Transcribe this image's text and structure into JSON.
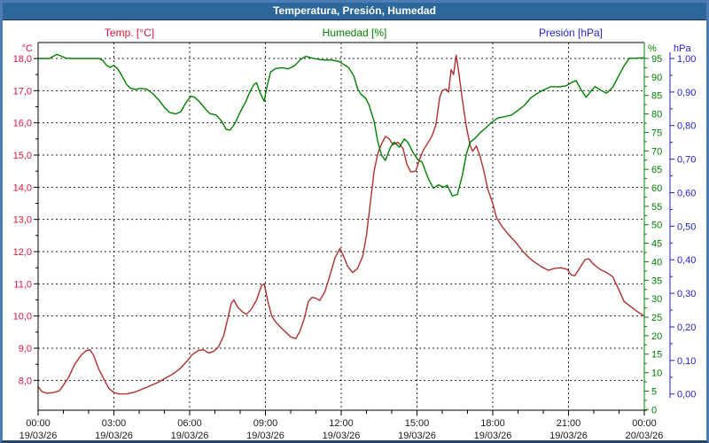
{
  "window": {
    "title": "Temperatura, Presión, Humedad"
  },
  "legend": {
    "temp_label": "Temp. [°C]",
    "humidity_label": "Humedad [%]",
    "pressure_label": "Presión [hPa]"
  },
  "colors": {
    "titlebar_bg": "#2d689c",
    "window_border": "#4e7cb5",
    "temp_curve": "#b22f2f",
    "temp_labels": "#dc143c",
    "humidity": "#008000",
    "pressure": "#1f1fcc",
    "grid": "#222222",
    "x_labels": "#1b1b1b"
  },
  "chart_data": {
    "type": "line",
    "title": "Temperatura, Presión, Humedad",
    "grid": "dashed-black",
    "x_axis": {
      "unit_hours": true,
      "range": [
        0,
        24
      ],
      "major_ticks": [
        {
          "t": 0,
          "time": "00:00",
          "date": "19/03/26"
        },
        {
          "t": 3,
          "time": "03:00",
          "date": "19/03/26"
        },
        {
          "t": 6,
          "time": "06:00",
          "date": "19/03/26"
        },
        {
          "t": 9,
          "time": "09:00",
          "date": "19/03/26"
        },
        {
          "t": 12,
          "time": "12:00",
          "date": "19/03/26"
        },
        {
          "t": 15,
          "time": "15:00",
          "date": "19/03/26"
        },
        {
          "t": 18,
          "time": "18:00",
          "date": "19/03/26"
        },
        {
          "t": 21,
          "time": "21:00",
          "date": "19/03/26"
        },
        {
          "t": 24,
          "time": "00:00",
          "date": "20/03/26"
        }
      ],
      "minor_tick_every_hours": 1
    },
    "temp_axis": {
      "unit": "°C",
      "side": "left",
      "tick_values": [
        18,
        17,
        16,
        15,
        14,
        13,
        12,
        11,
        10,
        9,
        8
      ],
      "tick_labels": [
        "18,0",
        "17,0",
        "16,0",
        "15,0",
        "14,0",
        "13,0",
        "12,0",
        "11,0",
        "10,0",
        "9,0",
        "8,0"
      ],
      "gridlines_at_ticks": true
    },
    "humidity_axis": {
      "unit": "%",
      "side": "right",
      "tick_values": [
        95,
        90,
        85,
        80,
        75,
        70,
        65,
        60,
        55,
        50,
        45,
        40,
        35,
        30,
        25,
        20,
        15,
        10,
        5,
        0
      ],
      "tick_labels": [
        "95",
        "90",
        "85",
        "80",
        "75",
        "70",
        "65",
        "60",
        "55",
        "50",
        "45",
        "40",
        "35",
        "30",
        "25",
        "20",
        "15",
        "10",
        "5",
        "0"
      ]
    },
    "pressure_axis": {
      "unit": "hPa",
      "side": "far-right",
      "tick_values": [
        1.0,
        0.9,
        0.8,
        0.7,
        0.6,
        0.5,
        0.4,
        0.3,
        0.2,
        0.1,
        0.0
      ],
      "tick_labels": [
        "1,00",
        "0,90",
        "0,80",
        "0,70",
        "0,60",
        "0,50",
        "0,40",
        "0,30",
        "0,20",
        "0,10",
        "0,00"
      ]
    },
    "series": [
      {
        "name": "Temp. [°C]",
        "axis": "temp",
        "color": "#b22f2f",
        "points": [
          [
            0,
            7.8
          ],
          [
            0.15,
            7.65
          ],
          [
            0.35,
            7.6
          ],
          [
            0.6,
            7.62
          ],
          [
            0.85,
            7.68
          ],
          [
            1.0,
            7.85
          ],
          [
            1.2,
            8.08
          ],
          [
            1.45,
            8.5
          ],
          [
            1.7,
            8.78
          ],
          [
            1.9,
            8.92
          ],
          [
            2.05,
            8.95
          ],
          [
            2.2,
            8.78
          ],
          [
            2.4,
            8.35
          ],
          [
            2.6,
            8.05
          ],
          [
            2.8,
            7.75
          ],
          [
            3.0,
            7.62
          ],
          [
            3.2,
            7.58
          ],
          [
            3.5,
            7.58
          ],
          [
            3.8,
            7.63
          ],
          [
            4.1,
            7.72
          ],
          [
            4.4,
            7.82
          ],
          [
            4.7,
            7.92
          ],
          [
            5.0,
            8.05
          ],
          [
            5.3,
            8.18
          ],
          [
            5.6,
            8.35
          ],
          [
            5.9,
            8.6
          ],
          [
            6.1,
            8.8
          ],
          [
            6.35,
            8.93
          ],
          [
            6.55,
            8.95
          ],
          [
            6.75,
            8.85
          ],
          [
            6.95,
            8.9
          ],
          [
            7.15,
            9.05
          ],
          [
            7.35,
            9.4
          ],
          [
            7.5,
            9.9
          ],
          [
            7.65,
            10.4
          ],
          [
            7.75,
            10.5
          ],
          [
            7.9,
            10.28
          ],
          [
            8.1,
            10.12
          ],
          [
            8.25,
            10.05
          ],
          [
            8.45,
            10.22
          ],
          [
            8.65,
            10.5
          ],
          [
            8.85,
            10.95
          ],
          [
            8.95,
            11.0
          ],
          [
            9.1,
            10.45
          ],
          [
            9.25,
            10.0
          ],
          [
            9.4,
            9.82
          ],
          [
            9.6,
            9.65
          ],
          [
            9.8,
            9.5
          ],
          [
            10.0,
            9.35
          ],
          [
            10.2,
            9.3
          ],
          [
            10.35,
            9.5
          ],
          [
            10.55,
            9.95
          ],
          [
            10.7,
            10.45
          ],
          [
            10.85,
            10.58
          ],
          [
            11.0,
            10.55
          ],
          [
            11.15,
            10.48
          ],
          [
            11.35,
            10.75
          ],
          [
            11.55,
            11.25
          ],
          [
            11.75,
            11.8
          ],
          [
            11.95,
            12.1
          ],
          [
            12.1,
            11.85
          ],
          [
            12.25,
            11.55
          ],
          [
            12.45,
            11.35
          ],
          [
            12.65,
            11.48
          ],
          [
            12.85,
            11.85
          ],
          [
            13.0,
            12.5
          ],
          [
            13.15,
            13.5
          ],
          [
            13.3,
            14.5
          ],
          [
            13.45,
            15.05
          ],
          [
            13.6,
            15.35
          ],
          [
            13.75,
            15.58
          ],
          [
            13.9,
            15.5
          ],
          [
            14.05,
            15.32
          ],
          [
            14.25,
            15.4
          ],
          [
            14.45,
            15.2
          ],
          [
            14.6,
            14.72
          ],
          [
            14.75,
            14.48
          ],
          [
            14.95,
            14.5
          ],
          [
            15.1,
            14.85
          ],
          [
            15.25,
            15.15
          ],
          [
            15.45,
            15.4
          ],
          [
            15.6,
            15.6
          ],
          [
            15.75,
            15.95
          ],
          [
            15.9,
            16.8
          ],
          [
            16.0,
            17.0
          ],
          [
            16.15,
            17.05
          ],
          [
            16.25,
            16.95
          ],
          [
            16.35,
            17.65
          ],
          [
            16.45,
            17.5
          ],
          [
            16.55,
            18.1
          ],
          [
            16.65,
            17.6
          ],
          [
            16.8,
            16.7
          ],
          [
            16.95,
            15.9
          ],
          [
            17.1,
            15.3
          ],
          [
            17.2,
            15.12
          ],
          [
            17.35,
            15.28
          ],
          [
            17.5,
            14.95
          ],
          [
            17.65,
            14.5
          ],
          [
            17.8,
            13.95
          ],
          [
            18.0,
            13.5
          ],
          [
            18.15,
            13.05
          ],
          [
            18.35,
            12.8
          ],
          [
            18.6,
            12.55
          ],
          [
            18.9,
            12.3
          ],
          [
            19.2,
            12.0
          ],
          [
            19.45,
            11.8
          ],
          [
            19.7,
            11.65
          ],
          [
            19.95,
            11.52
          ],
          [
            20.2,
            11.42
          ],
          [
            20.45,
            11.48
          ],
          [
            20.7,
            11.5
          ],
          [
            20.95,
            11.45
          ],
          [
            21.1,
            11.28
          ],
          [
            21.25,
            11.25
          ],
          [
            21.45,
            11.5
          ],
          [
            21.65,
            11.75
          ],
          [
            21.8,
            11.78
          ],
          [
            22.0,
            11.6
          ],
          [
            22.25,
            11.45
          ],
          [
            22.5,
            11.35
          ],
          [
            22.75,
            11.22
          ],
          [
            23.0,
            10.8
          ],
          [
            23.2,
            10.45
          ],
          [
            23.45,
            10.3
          ],
          [
            23.7,
            10.15
          ],
          [
            23.95,
            10.02
          ],
          [
            24,
            10.0
          ]
        ]
      },
      {
        "name": "Humedad [%]",
        "axis": "humidity",
        "color": "#008000",
        "points": [
          [
            0,
            95
          ],
          [
            0.45,
            95
          ],
          [
            0.6,
            95.6
          ],
          [
            0.75,
            96.1
          ],
          [
            0.9,
            95.7
          ],
          [
            1.1,
            95.1
          ],
          [
            1.3,
            95
          ],
          [
            2.4,
            95
          ],
          [
            2.55,
            94.5
          ],
          [
            2.7,
            93.2
          ],
          [
            2.85,
            92.6
          ],
          [
            3.0,
            93.1
          ],
          [
            3.15,
            92.2
          ],
          [
            3.3,
            90.5
          ],
          [
            3.5,
            88.0
          ],
          [
            3.65,
            87.0
          ],
          [
            3.85,
            86.6
          ],
          [
            4.05,
            86.9
          ],
          [
            4.3,
            86.7
          ],
          [
            4.55,
            85.4
          ],
          [
            4.8,
            83.6
          ],
          [
            5.0,
            81.8
          ],
          [
            5.2,
            80.4
          ],
          [
            5.45,
            80.0
          ],
          [
            5.65,
            80.6
          ],
          [
            5.85,
            83.0
          ],
          [
            6.05,
            84.8
          ],
          [
            6.2,
            84.5
          ],
          [
            6.4,
            83.2
          ],
          [
            6.6,
            81.5
          ],
          [
            6.8,
            80.1
          ],
          [
            7.05,
            79.7
          ],
          [
            7.25,
            78.2
          ],
          [
            7.45,
            75.8
          ],
          [
            7.6,
            75.6
          ],
          [
            7.8,
            77.5
          ],
          [
            8.0,
            80.5
          ],
          [
            8.2,
            83.0
          ],
          [
            8.4,
            86.2
          ],
          [
            8.55,
            88.0
          ],
          [
            8.65,
            88.4
          ],
          [
            8.8,
            85.5
          ],
          [
            8.95,
            83.4
          ],
          [
            9.05,
            87.0
          ],
          [
            9.2,
            91.3
          ],
          [
            9.4,
            92.3
          ],
          [
            9.65,
            92.5
          ],
          [
            9.9,
            92.2
          ],
          [
            10.15,
            93.0
          ],
          [
            10.4,
            94.8
          ],
          [
            10.6,
            95.6
          ],
          [
            10.8,
            95.2
          ],
          [
            11.0,
            94.9
          ],
          [
            11.3,
            94.6
          ],
          [
            11.6,
            94.6
          ],
          [
            11.9,
            94.2
          ],
          [
            12.1,
            93.4
          ],
          [
            12.3,
            92.5
          ],
          [
            12.5,
            90.2
          ],
          [
            12.65,
            86.8
          ],
          [
            12.8,
            85.2
          ],
          [
            12.95,
            84.4
          ],
          [
            13.1,
            82.5
          ],
          [
            13.3,
            78.0
          ],
          [
            13.45,
            72.5
          ],
          [
            13.6,
            68.8
          ],
          [
            13.75,
            67.4
          ],
          [
            13.95,
            71.0
          ],
          [
            14.1,
            72.4
          ],
          [
            14.3,
            71.0
          ],
          [
            14.5,
            73.2
          ],
          [
            14.65,
            72.2
          ],
          [
            14.85,
            69.5
          ],
          [
            15.05,
            67.5
          ],
          [
            15.2,
            67.0
          ],
          [
            15.45,
            62.5
          ],
          [
            15.65,
            59.9
          ],
          [
            15.85,
            60.8
          ],
          [
            16.05,
            60.2
          ],
          [
            16.2,
            60.7
          ],
          [
            16.4,
            57.8
          ],
          [
            16.6,
            58.2
          ],
          [
            16.8,
            63.5
          ],
          [
            16.95,
            69.0
          ],
          [
            17.1,
            72.3
          ],
          [
            17.3,
            73.4
          ],
          [
            17.5,
            74.9
          ],
          [
            17.75,
            76.4
          ],
          [
            17.95,
            77.7
          ],
          [
            18.2,
            78.9
          ],
          [
            18.5,
            79.3
          ],
          [
            18.75,
            79.7
          ],
          [
            19.0,
            81.0
          ],
          [
            19.25,
            82.3
          ],
          [
            19.5,
            84.3
          ],
          [
            19.75,
            85.5
          ],
          [
            19.95,
            86.3
          ],
          [
            20.3,
            87.4
          ],
          [
            20.6,
            87.3
          ],
          [
            20.9,
            87.6
          ],
          [
            21.15,
            88.6
          ],
          [
            21.3,
            89.0
          ],
          [
            21.5,
            86.5
          ],
          [
            21.7,
            84.5
          ],
          [
            21.9,
            86.3
          ],
          [
            22.05,
            87.4
          ],
          [
            22.3,
            86.3
          ],
          [
            22.5,
            85.6
          ],
          [
            22.75,
            87.2
          ],
          [
            23.0,
            90.5
          ],
          [
            23.2,
            93.0
          ],
          [
            23.4,
            95.0
          ],
          [
            23.7,
            95.1
          ],
          [
            24,
            95.2
          ]
        ]
      },
      {
        "name": "Presión [hPa]",
        "axis": "pressure",
        "color": "#1f1fcc",
        "points": []
      }
    ]
  }
}
